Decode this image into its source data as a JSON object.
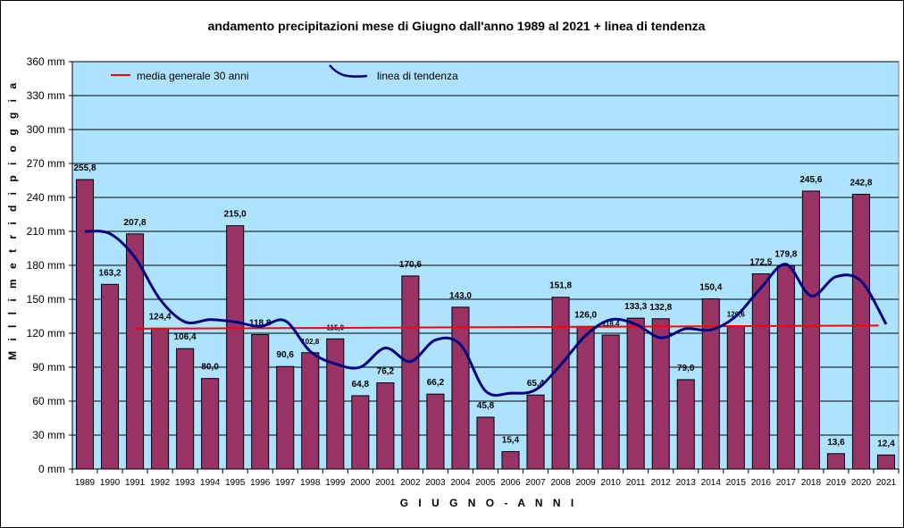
{
  "chart_data": {
    "type": "bar",
    "title": "andamento precipitazioni mese di Giugno dall'anno 1989 al 2021 + linea di tendenza",
    "xlabel": "G I U G N O  -  A N N I",
    "ylabel": "M i l l i m e t r i   d i   p i o g g i a",
    "ylim": [
      0,
      360
    ],
    "yticks": [
      0,
      30,
      60,
      90,
      120,
      150,
      180,
      210,
      240,
      270,
      300,
      330,
      360
    ],
    "ytick_labels": [
      "0 mm",
      "30 mm",
      "60 mm",
      "90 mm",
      "120 mm",
      "150 mm",
      "180 mm",
      "210 mm",
      "240 mm",
      "270 mm",
      "300 mm",
      "330 mm",
      "360 mm"
    ],
    "grid": "horizontal",
    "legend_position": "top-left",
    "categories": [
      "1989",
      "1990",
      "1991",
      "1992",
      "1993",
      "1994",
      "1995",
      "1996",
      "1997",
      "1998",
      "1999",
      "2000",
      "2001",
      "2002",
      "2003",
      "2004",
      "2005",
      "2006",
      "2007",
      "2008",
      "2009",
      "2010",
      "2011",
      "2012",
      "2013",
      "2014",
      "2015",
      "2016",
      "2017",
      "2018",
      "2019",
      "2020",
      "2021"
    ],
    "values": [
      255.8,
      163.2,
      207.8,
      124.4,
      106.4,
      80.0,
      215.0,
      118.8,
      90.6,
      102.8,
      115.0,
      64.8,
      76.2,
      170.6,
      66.2,
      143.0,
      45.8,
      15.4,
      65.4,
      151.8,
      126.0,
      118.4,
      133.3,
      132.8,
      79.0,
      150.4,
      126.6,
      172.5,
      179.8,
      245.6,
      13.6,
      242.8,
      12.4
    ],
    "value_labels": [
      "255,8",
      "163,2",
      "207,8",
      "124,4",
      "106,4",
      "80,0",
      "215,0",
      "118,8",
      "90,6",
      "102,8",
      "115,0",
      "64,8",
      "76,2",
      "170,6",
      "66,2",
      "143,0",
      "45,8",
      "15,4",
      "65,4",
      "151,8",
      "126,0",
      "118,4",
      "133,3",
      "132,8",
      "79,0",
      "150,4",
      "126,6",
      "172,5",
      "179,8",
      "245,6",
      "13,6",
      "242,8",
      "12,4"
    ],
    "mean_line": {
      "label": "media generale 30 anni",
      "start_value": 124.0,
      "end_value": 126.8,
      "color": "#ff0000"
    },
    "trend_line": {
      "label": "linea di tendenza",
      "color": "#000080",
      "values": [
        210,
        208,
        187,
        150,
        130,
        132,
        130,
        126,
        131,
        104,
        93,
        90,
        107,
        95,
        114,
        110,
        69,
        67,
        70,
        92,
        118,
        132,
        128,
        116,
        124,
        123,
        135,
        160,
        181,
        153,
        170,
        166,
        128
      ]
    },
    "colors": {
      "bar_fill": "#993366",
      "plot_background": "#aee3ff",
      "grid": "#000000",
      "mean_line": "#ff0000",
      "trend_line": "#000080"
    }
  }
}
